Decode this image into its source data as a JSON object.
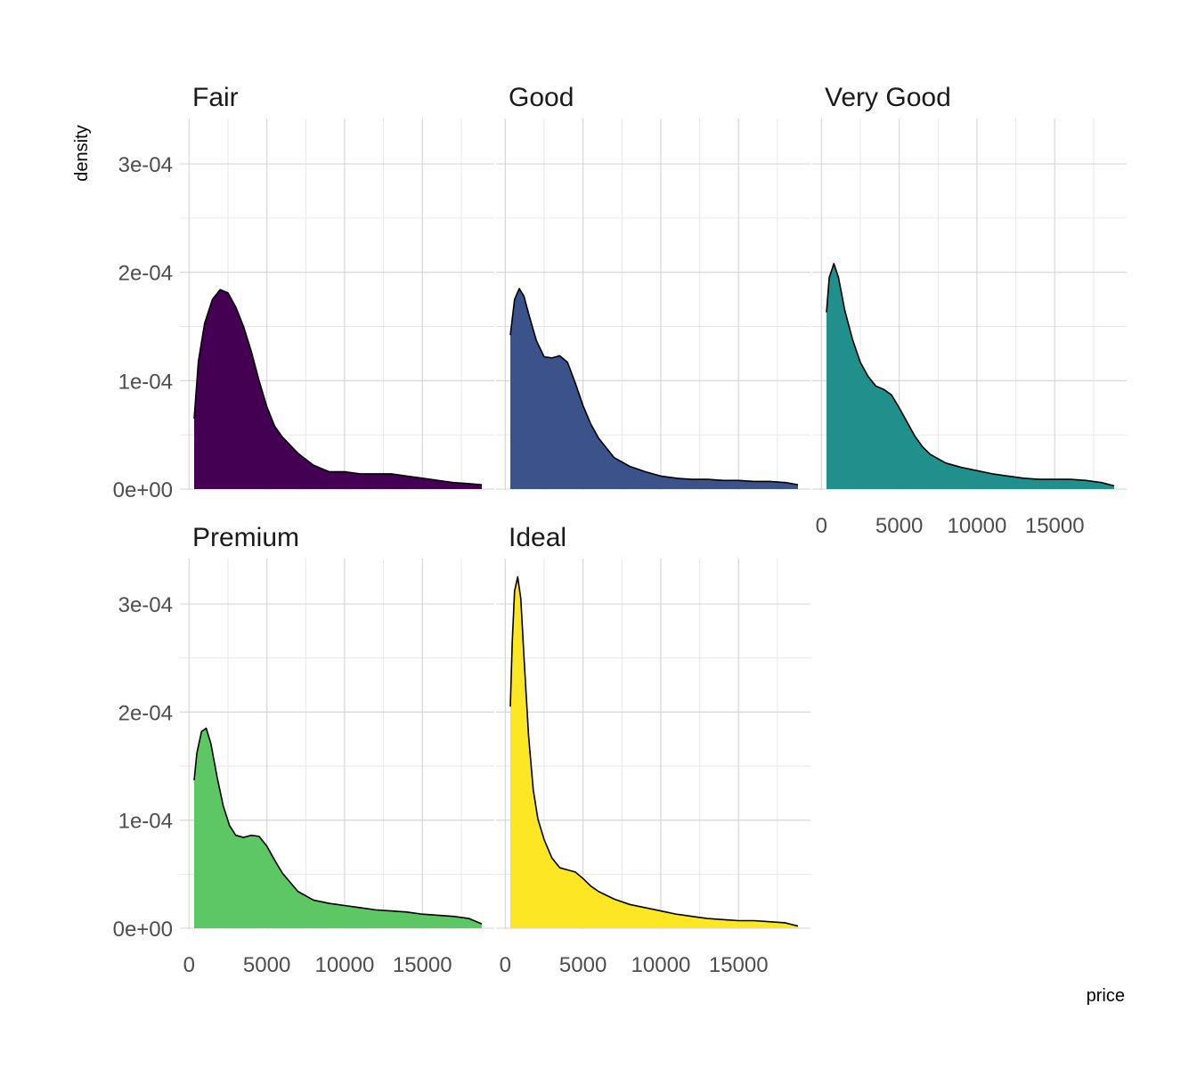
{
  "chart_data": {
    "type": "area",
    "subtype": "density",
    "facet": "wrap",
    "x_label": "price",
    "y_label": "density",
    "xlim": [
      326,
      18823
    ],
    "ylim": [
      0,
      0.00034
    ],
    "x_ticks": [
      0,
      5000,
      10000,
      15000
    ],
    "x_tick_labels": [
      "0",
      "5000",
      "10000",
      "15000"
    ],
    "y_ticks": [
      0,
      0.0001,
      0.0002,
      0.0003
    ],
    "y_tick_labels": [
      "0e+00",
      "1e-04",
      "2e-04",
      "3e-04"
    ],
    "grid": true,
    "legend": "none",
    "series": [
      {
        "name": "Fair",
        "color": "#440154",
        "x": [
          326,
          600,
          1000,
          1500,
          2000,
          2500,
          3000,
          3500,
          4000,
          4500,
          5000,
          5500,
          6000,
          7000,
          8000,
          9000,
          9500,
          10000,
          11000,
          12000,
          13000,
          14000,
          15000,
          16000,
          17000,
          18000,
          18823
        ],
        "y": [
          6.5e-05,
          0.000118,
          0.000153,
          0.000175,
          0.000184,
          0.000181,
          0.000168,
          0.00015,
          0.000127,
          0.0001,
          7.6e-05,
          5.8e-05,
          4.8e-05,
          3.3e-05,
          2.2e-05,
          1.6e-05,
          1.6e-05,
          1.6e-05,
          1.4e-05,
          1.4e-05,
          1.4e-05,
          1.2e-05,
          1e-05,
          8e-06,
          6e-06,
          5e-06,
          4e-06
        ]
      },
      {
        "name": "Good",
        "color": "#3B528B",
        "x": [
          326,
          600,
          900,
          1200,
          1500,
          2000,
          2500,
          3000,
          3500,
          4000,
          4500,
          5000,
          5500,
          6000,
          6500,
          7000,
          8000,
          9000,
          10000,
          11000,
          12000,
          13000,
          14000,
          15000,
          16000,
          17000,
          18000,
          18823
        ],
        "y": [
          0.000142,
          0.000175,
          0.000185,
          0.000178,
          0.000162,
          0.000137,
          0.000122,
          0.000121,
          0.000123,
          0.000117,
          9.8e-05,
          7.7e-05,
          6e-05,
          4.7e-05,
          3.8e-05,
          2.9e-05,
          2.1e-05,
          1.6e-05,
          1.2e-05,
          1e-05,
          9e-06,
          9e-06,
          8e-06,
          8e-06,
          7e-06,
          7e-06,
          6e-06,
          4e-06
        ]
      },
      {
        "name": "Very Good",
        "color": "#21908C",
        "x": [
          326,
          500,
          800,
          1100,
          1500,
          2000,
          2500,
          3000,
          3500,
          4000,
          4500,
          5000,
          5500,
          6000,
          6500,
          7000,
          8000,
          9000,
          10000,
          11000,
          12000,
          13000,
          14000,
          15000,
          16000,
          17000,
          18000,
          18823
        ],
        "y": [
          0.000163,
          0.000195,
          0.000208,
          0.000195,
          0.000165,
          0.000138,
          0.000117,
          0.000104,
          9.5e-05,
          9.2e-05,
          8.7e-05,
          7.5e-05,
          6.2e-05,
          4.9e-05,
          3.9e-05,
          3.2e-05,
          2.4e-05,
          2e-05,
          1.7e-05,
          1.4e-05,
          1.2e-05,
          1e-05,
          9e-06,
          9e-06,
          9e-06,
          8e-06,
          6e-06,
          3e-06
        ]
      },
      {
        "name": "Premium",
        "color": "#5DC863",
        "x": [
          326,
          500,
          800,
          1100,
          1400,
          1800,
          2200,
          2600,
          3000,
          3500,
          4000,
          4500,
          5000,
          5500,
          6000,
          7000,
          8000,
          9000,
          10000,
          11000,
          12000,
          13000,
          14000,
          15000,
          16000,
          17000,
          18000,
          18823
        ],
        "y": [
          0.000137,
          0.000162,
          0.000182,
          0.000185,
          0.000171,
          0.00014,
          0.000113,
          9.5e-05,
          8.6e-05,
          8.4e-05,
          8.6e-05,
          8.5e-05,
          7.6e-05,
          6.3e-05,
          5.1e-05,
          3.4e-05,
          2.6e-05,
          2.3e-05,
          2.1e-05,
          1.9e-05,
          1.7e-05,
          1.6e-05,
          1.5e-05,
          1.3e-05,
          1.2e-05,
          1.1e-05,
          9e-06,
          4e-06
        ]
      },
      {
        "name": "Ideal",
        "color": "#FDE725",
        "x": [
          326,
          450,
          600,
          800,
          1000,
          1200,
          1500,
          1800,
          2100,
          2500,
          3000,
          3500,
          4000,
          4500,
          5000,
          5500,
          6000,
          7000,
          8000,
          9000,
          10000,
          11000,
          12000,
          13000,
          14000,
          15000,
          16000,
          17000,
          18000,
          18823
        ],
        "y": [
          0.000205,
          0.000265,
          0.000312,
          0.000325,
          0.000305,
          0.000252,
          0.000178,
          0.000128,
          0.000101,
          8.2e-05,
          6.5e-05,
          5.6e-05,
          5.4e-05,
          5.2e-05,
          4.6e-05,
          3.9e-05,
          3.4e-05,
          2.7e-05,
          2.2e-05,
          1.9e-05,
          1.6e-05,
          1.3e-05,
          1.1e-05,
          9e-06,
          8e-06,
          7e-06,
          7e-06,
          6e-06,
          5e-06,
          2e-06
        ]
      }
    ]
  }
}
